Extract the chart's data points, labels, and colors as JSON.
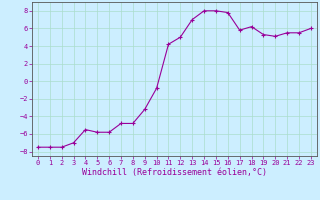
{
  "x": [
    0,
    1,
    2,
    3,
    4,
    5,
    6,
    7,
    8,
    9,
    10,
    11,
    12,
    13,
    14,
    15,
    16,
    17,
    18,
    19,
    20,
    21,
    22,
    23
  ],
  "y": [
    -7.5,
    -7.5,
    -7.5,
    -7.0,
    -5.5,
    -5.8,
    -5.8,
    -4.8,
    -4.8,
    -3.2,
    -0.8,
    4.2,
    5.0,
    7.0,
    8.0,
    8.0,
    7.8,
    5.8,
    6.2,
    5.3,
    5.1,
    5.5,
    5.5,
    6.0
  ],
  "line_color": "#990099",
  "marker": "+",
  "marker_size": 3,
  "background_color": "#cceeff",
  "grid_color": "#aaddcc",
  "xlabel": "Windchill (Refroidissement éolien,°C)",
  "ylabel": "",
  "xlim": [
    -0.5,
    23.5
  ],
  "ylim": [
    -8.5,
    9.0
  ],
  "yticks": [
    -8,
    -6,
    -4,
    -2,
    0,
    2,
    4,
    6,
    8
  ],
  "xticks": [
    0,
    1,
    2,
    3,
    4,
    5,
    6,
    7,
    8,
    9,
    10,
    11,
    12,
    13,
    14,
    15,
    16,
    17,
    18,
    19,
    20,
    21,
    22,
    23
  ],
  "tick_fontsize": 5.0,
  "xlabel_fontsize": 6.0,
  "axis_color": "#555555"
}
